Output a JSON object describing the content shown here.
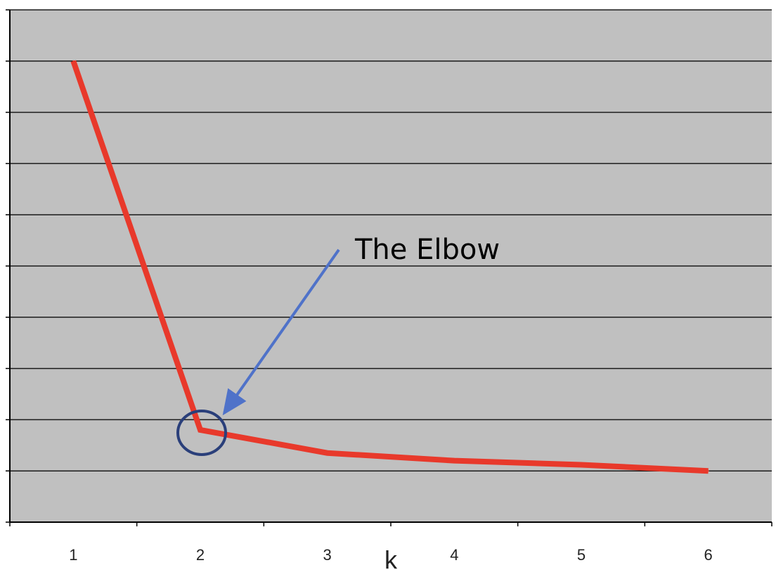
{
  "chart_data": {
    "type": "line",
    "title": "",
    "xlabel": "k",
    "ylabel": "",
    "x": [
      1,
      2,
      3,
      4,
      5,
      6
    ],
    "series": [
      {
        "values": [
          9.0,
          1.8,
          1.35,
          1.2,
          1.12,
          1.0
        ]
      }
    ],
    "xlim": [
      0.5,
      6.5
    ],
    "ylim": [
      0,
      10
    ],
    "y_gridlines": [
      0,
      1,
      2,
      3,
      4,
      5,
      6,
      7,
      8,
      9,
      10
    ],
    "y_tick_labels_shown": false,
    "grid": true,
    "legend": "none",
    "annotation": {
      "text": "The Elbow",
      "target_x": 2,
      "target_y": 1.8
    },
    "colors": {
      "plot_background": "#c0c0c0",
      "gridline": "#1a1a1a",
      "axis": "#000000",
      "line": "#e8392b",
      "arrow": "#4f72c9",
      "circle": "#2a3f7a"
    }
  }
}
